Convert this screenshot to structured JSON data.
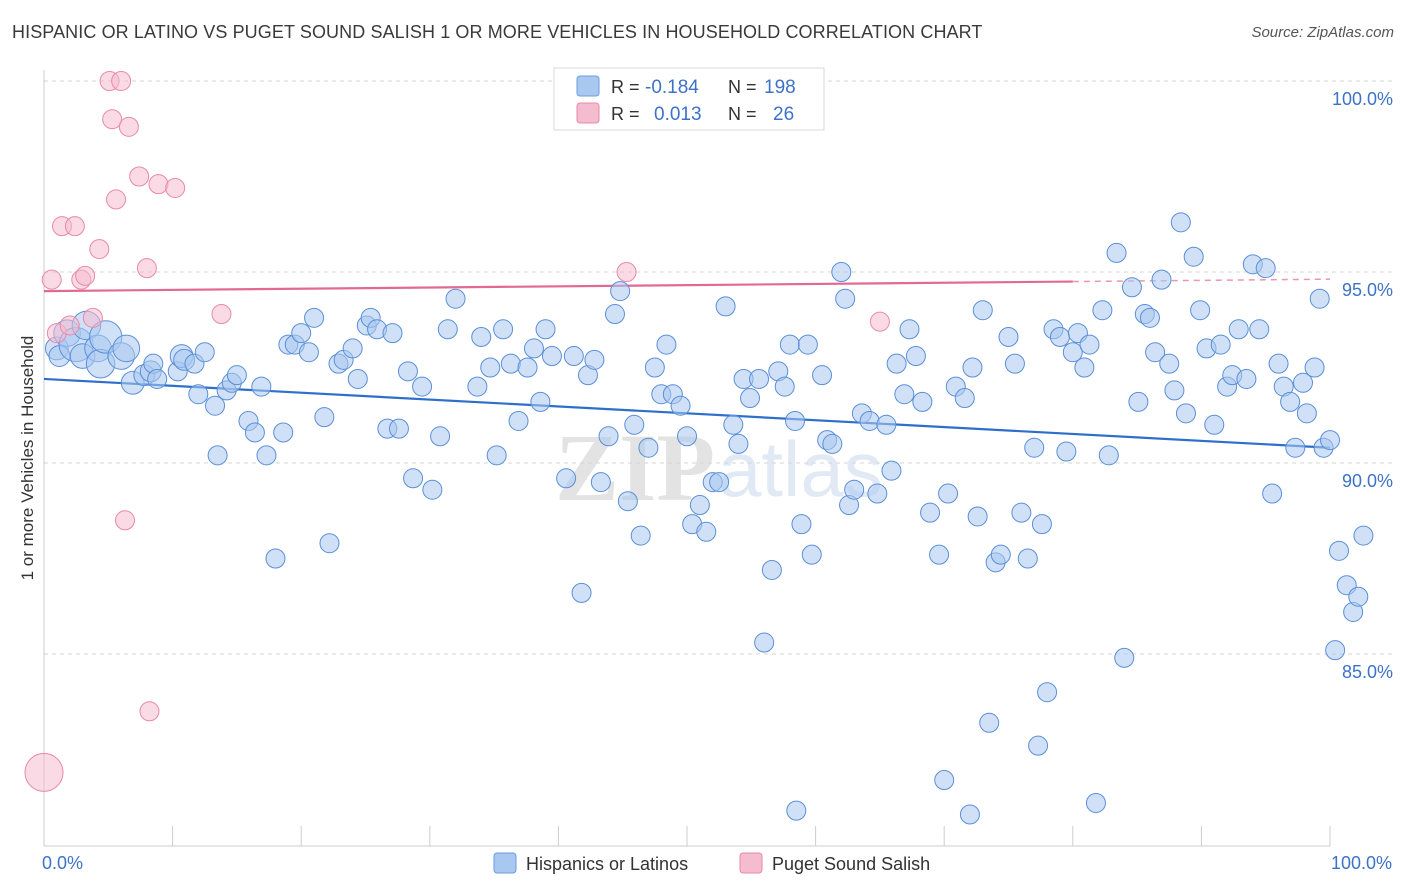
{
  "title": "HISPANIC OR LATINO VS PUGET SOUND SALISH 1 OR MORE VEHICLES IN HOUSEHOLD CORRELATION CHART",
  "source": "Source: ZipAtlas.com",
  "watermark": {
    "zip": "ZIP",
    "atlas": "atlas"
  },
  "stats_box": {
    "rows": [
      {
        "r_label": "R =",
        "r_value": "-0.184",
        "n_label": "N =",
        "n_value": "198",
        "color": "#a9c8f0",
        "border": "#6a9be0"
      },
      {
        "r_label": "R =",
        "r_value": "0.013",
        "n_label": "N =",
        "n_value": "26",
        "color": "#f5bcd0",
        "border": "#e88aa8"
      }
    ]
  },
  "legend": {
    "items": [
      {
        "label": "Hispanics or Latinos",
        "color": "#a9c8f0",
        "border": "#6a9be0"
      },
      {
        "label": "Puget Sound Salish",
        "color": "#f5bcd0",
        "border": "#e88aa8"
      }
    ]
  },
  "chart_data": {
    "type": "scatter",
    "ylabel": "1 or more Vehicles in Household",
    "xlabel": "",
    "xlim": [
      0,
      100
    ],
    "ylim": [
      80.5,
      101.0
    ],
    "x_tick_labels": {
      "min": "0.0%",
      "max": "100.0%"
    },
    "y_ticks": [
      {
        "value": 85,
        "label": "85.0%"
      },
      {
        "value": 90,
        "label": "90.0%"
      },
      {
        "value": 95,
        "label": "95.0%"
      },
      {
        "value": 100,
        "label": "100.0%"
      }
    ],
    "grid": "horizontal-dashed",
    "series": [
      {
        "name": "Hispanics or Latinos",
        "color": "#a9c8f0",
        "stroke": "#5b8fd8",
        "trend": {
          "x": [
            0,
            100
          ],
          "y": [
            92.2,
            90.4
          ],
          "color": "#2f6fcc"
        },
        "points": [
          [
            1.0,
            93.0,
            1.2
          ],
          [
            1.2,
            92.8,
            1.1
          ],
          [
            1.8,
            93.4,
            1.4
          ],
          [
            2.5,
            93.1,
            1.8
          ],
          [
            3.0,
            92.8,
            1.3
          ],
          [
            3.3,
            93.6,
            1.5
          ],
          [
            4.2,
            93.0,
            1.4
          ],
          [
            4.4,
            92.6,
            1.5
          ],
          [
            4.8,
            93.3,
            1.7
          ],
          [
            6.0,
            92.8,
            1.4
          ],
          [
            6.4,
            93.0,
            1.4
          ],
          [
            6.9,
            92.1,
            1.2
          ],
          [
            7.8,
            92.3,
            1.1
          ],
          [
            8.3,
            92.4,
            1.1
          ],
          [
            8.5,
            92.6,
            1.0
          ],
          [
            8.8,
            92.2,
            1.0
          ],
          [
            10.4,
            92.4,
            1.0
          ],
          [
            10.7,
            92.8,
            1.2
          ],
          [
            10.9,
            92.7,
            1.1
          ],
          [
            11.7,
            92.6,
            1.0
          ],
          [
            12.0,
            91.8,
            1.0
          ],
          [
            12.5,
            92.9,
            1.0
          ],
          [
            13.3,
            91.5,
            1.0
          ],
          [
            13.5,
            90.2,
            1.0
          ],
          [
            14.2,
            91.9,
            1.0
          ],
          [
            14.6,
            92.1,
            1.0
          ],
          [
            15.0,
            92.3,
            1.0
          ],
          [
            15.9,
            91.1,
            1.0
          ],
          [
            16.4,
            90.8,
            1.0
          ],
          [
            16.9,
            92.0,
            1.0
          ],
          [
            17.3,
            90.2,
            1.0
          ],
          [
            18.0,
            87.5,
            1.0
          ],
          [
            18.6,
            90.8,
            1.0
          ],
          [
            19.0,
            93.1,
            1.0
          ],
          [
            19.5,
            93.1,
            1.0
          ],
          [
            20.0,
            93.4,
            1.0
          ],
          [
            20.6,
            92.9,
            1.0
          ],
          [
            21.0,
            93.8,
            1.0
          ],
          [
            21.8,
            91.2,
            1.0
          ],
          [
            22.2,
            87.9,
            1.0
          ],
          [
            22.9,
            92.6,
            1.0
          ],
          [
            23.3,
            92.7,
            1.0
          ],
          [
            24.0,
            93.0,
            1.0
          ],
          [
            24.4,
            92.2,
            1.0
          ],
          [
            25.1,
            93.6,
            1.0
          ],
          [
            25.4,
            93.8,
            1.0
          ],
          [
            25.9,
            93.5,
            1.0
          ],
          [
            26.7,
            90.9,
            1.0
          ],
          [
            27.1,
            93.4,
            1.0
          ],
          [
            27.6,
            90.9,
            1.0
          ],
          [
            28.3,
            92.4,
            1.0
          ],
          [
            28.7,
            89.6,
            1.0
          ],
          [
            29.4,
            92.0,
            1.0
          ],
          [
            30.2,
            89.3,
            1.0
          ],
          [
            30.8,
            90.7,
            1.0
          ],
          [
            31.4,
            93.5,
            1.0
          ],
          [
            32.0,
            94.3,
            1.0
          ],
          [
            33.7,
            92.0,
            1.0
          ],
          [
            34.0,
            93.3,
            1.0
          ],
          [
            34.7,
            92.5,
            1.0
          ],
          [
            35.2,
            90.2,
            1.0
          ],
          [
            35.7,
            93.5,
            1.0
          ],
          [
            36.3,
            92.6,
            1.0
          ],
          [
            36.9,
            91.1,
            1.0
          ],
          [
            37.6,
            92.5,
            1.0
          ],
          [
            38.1,
            93.0,
            1.0
          ],
          [
            38.6,
            91.6,
            1.0
          ],
          [
            39.0,
            93.5,
            1.0
          ],
          [
            39.5,
            92.8,
            1.0
          ],
          [
            40.6,
            89.6,
            1.0
          ],
          [
            41.2,
            92.8,
            1.0
          ],
          [
            41.8,
            86.6,
            1.0
          ],
          [
            42.3,
            92.3,
            1.0
          ],
          [
            42.8,
            92.7,
            1.0
          ],
          [
            43.3,
            89.5,
            1.0
          ],
          [
            43.9,
            90.7,
            1.0
          ],
          [
            44.4,
            93.9,
            1.0
          ],
          [
            44.8,
            94.5,
            1.0
          ],
          [
            45.4,
            89.0,
            1.0
          ],
          [
            45.9,
            91.0,
            1.0
          ],
          [
            46.4,
            88.1,
            1.0
          ],
          [
            47.0,
            90.4,
            1.0
          ],
          [
            47.5,
            92.5,
            1.0
          ],
          [
            48.0,
            91.8,
            1.0
          ],
          [
            48.4,
            93.1,
            1.0
          ],
          [
            48.9,
            91.8,
            1.0
          ],
          [
            49.5,
            91.5,
            1.0
          ],
          [
            50.0,
            90.7,
            1.0
          ],
          [
            50.4,
            88.4,
            1.0
          ],
          [
            51.0,
            88.9,
            1.0
          ],
          [
            51.5,
            88.2,
            1.0
          ],
          [
            52.0,
            89.5,
            1.0
          ],
          [
            52.5,
            89.5,
            1.0
          ],
          [
            53.0,
            94.1,
            1.0
          ],
          [
            53.6,
            91.0,
            1.0
          ],
          [
            54.0,
            90.5,
            1.0
          ],
          [
            54.4,
            92.2,
            1.0
          ],
          [
            54.9,
            91.7,
            1.0
          ],
          [
            55.6,
            92.2,
            1.0
          ],
          [
            56.0,
            85.3,
            1.0
          ],
          [
            56.6,
            87.2,
            1.0
          ],
          [
            57.1,
            92.4,
            1.0
          ],
          [
            57.6,
            92.0,
            1.0
          ],
          [
            58.0,
            93.1,
            1.0
          ],
          [
            58.4,
            91.1,
            1.0
          ],
          [
            58.9,
            88.4,
            1.0
          ],
          [
            59.4,
            93.1,
            1.0
          ],
          [
            59.7,
            87.6,
            1.0
          ],
          [
            60.5,
            92.3,
            1.0
          ],
          [
            60.9,
            90.6,
            1.0
          ],
          [
            61.3,
            90.5,
            1.0
          ],
          [
            62.0,
            95.0,
            1.0
          ],
          [
            62.3,
            94.3,
            1.0
          ],
          [
            62.6,
            88.9,
            1.0
          ],
          [
            63.0,
            89.3,
            1.0
          ],
          [
            63.6,
            91.3,
            1.0
          ],
          [
            64.2,
            91.1,
            1.0
          ],
          [
            64.8,
            89.2,
            1.0
          ],
          [
            65.5,
            91.0,
            1.0
          ],
          [
            65.9,
            89.8,
            1.0
          ],
          [
            66.3,
            92.6,
            1.0
          ],
          [
            66.9,
            91.8,
            1.0
          ],
          [
            67.3,
            93.5,
            1.0
          ],
          [
            67.8,
            92.8,
            1.0
          ],
          [
            68.3,
            91.6,
            1.0
          ],
          [
            68.9,
            88.7,
            1.0
          ],
          [
            69.6,
            87.6,
            1.0
          ],
          [
            70.3,
            89.2,
            1.0
          ],
          [
            70.9,
            92.0,
            1.0
          ],
          [
            71.6,
            91.7,
            1.0
          ],
          [
            72.2,
            92.5,
            1.0
          ],
          [
            72.6,
            88.6,
            1.0
          ],
          [
            73.0,
            94.0,
            1.0
          ],
          [
            73.5,
            83.2,
            1.0
          ],
          [
            74.0,
            87.4,
            1.0
          ],
          [
            74.4,
            87.6,
            1.0
          ],
          [
            75.0,
            93.3,
            1.0
          ],
          [
            75.5,
            92.6,
            1.0
          ],
          [
            76.0,
            88.7,
            1.0
          ],
          [
            76.5,
            87.5,
            1.0
          ],
          [
            77.0,
            90.4,
            1.0
          ],
          [
            77.6,
            88.4,
            1.0
          ],
          [
            78.0,
            84.0,
            1.0
          ],
          [
            78.5,
            93.5,
            1.0
          ],
          [
            79.0,
            93.3,
            1.0
          ],
          [
            79.5,
            90.3,
            1.0
          ],
          [
            80.0,
            92.9,
            1.0
          ],
          [
            80.4,
            93.4,
            1.0
          ],
          [
            80.9,
            92.5,
            1.0
          ],
          [
            81.3,
            93.1,
            1.0
          ],
          [
            81.8,
            81.1,
            1.0
          ],
          [
            82.3,
            94.0,
            1.0
          ],
          [
            82.8,
            90.2,
            1.0
          ],
          [
            83.4,
            95.5,
            1.0
          ],
          [
            84.0,
            84.9,
            1.0
          ],
          [
            84.6,
            94.6,
            1.0
          ],
          [
            85.1,
            91.6,
            1.0
          ],
          [
            85.6,
            93.9,
            1.0
          ],
          [
            86.0,
            93.8,
            1.0
          ],
          [
            86.4,
            92.9,
            1.0
          ],
          [
            86.9,
            94.8,
            1.0
          ],
          [
            87.5,
            92.6,
            1.0
          ],
          [
            87.9,
            91.9,
            1.0
          ],
          [
            88.4,
            96.3,
            1.0
          ],
          [
            88.8,
            91.3,
            1.0
          ],
          [
            89.4,
            95.4,
            1.0
          ],
          [
            89.9,
            94.0,
            1.0
          ],
          [
            90.4,
            93.0,
            1.0
          ],
          [
            91.0,
            91.0,
            1.0
          ],
          [
            91.5,
            93.1,
            1.0
          ],
          [
            92.0,
            92.0,
            1.0
          ],
          [
            92.4,
            92.3,
            1.0
          ],
          [
            92.9,
            93.5,
            1.0
          ],
          [
            93.5,
            92.2,
            1.0
          ],
          [
            94.0,
            95.2,
            1.0
          ],
          [
            94.5,
            93.5,
            1.0
          ],
          [
            95.0,
            95.1,
            1.0
          ],
          [
            95.5,
            89.2,
            1.0
          ],
          [
            96.0,
            92.6,
            1.0
          ],
          [
            96.4,
            92.0,
            1.0
          ],
          [
            96.9,
            91.6,
            1.0
          ],
          [
            97.3,
            90.4,
            1.0
          ],
          [
            97.9,
            92.1,
            1.0
          ],
          [
            98.2,
            91.3,
            1.0
          ],
          [
            98.8,
            92.5,
            1.0
          ],
          [
            99.2,
            94.3,
            1.0
          ],
          [
            99.5,
            90.4,
            1.0
          ],
          [
            100.0,
            90.6,
            1.0
          ],
          [
            100.4,
            85.1,
            1.0
          ],
          [
            100.7,
            87.7,
            1.0
          ],
          [
            101.3,
            86.8,
            1.0
          ],
          [
            101.8,
            86.1,
            1.0
          ],
          [
            102.2,
            86.5,
            1.0
          ],
          [
            102.6,
            88.1,
            1.0
          ],
          [
            58.5,
            80.9,
            1.0
          ],
          [
            70.0,
            81.7,
            1.0
          ],
          [
            72.0,
            80.8,
            1.0
          ],
          [
            77.3,
            82.6,
            1.0
          ]
        ]
      },
      {
        "name": "Puget Sound Salish",
        "color": "#f5bcd0",
        "stroke": "#e88aa8",
        "trend": {
          "x": [
            0,
            80
          ],
          "y": [
            94.5,
            94.75
          ],
          "color": "#e26a92",
          "dashed_extension_to": 100
        },
        "points": [
          [
            0.0,
            81.9,
            2.0
          ],
          [
            0.6,
            94.8,
            1.0
          ],
          [
            1.0,
            93.4,
            1.0
          ],
          [
            1.4,
            96.2,
            1.0
          ],
          [
            2.0,
            93.6,
            1.0
          ],
          [
            2.4,
            96.2,
            1.0
          ],
          [
            2.9,
            94.8,
            1.0
          ],
          [
            3.2,
            94.9,
            1.0
          ],
          [
            3.8,
            93.8,
            1.0
          ],
          [
            4.3,
            95.6,
            1.0
          ],
          [
            5.1,
            100.0,
            1.0
          ],
          [
            5.3,
            99.0,
            1.0
          ],
          [
            5.6,
            96.9,
            1.0
          ],
          [
            6.0,
            100.0,
            1.0
          ],
          [
            6.3,
            88.5,
            1.0
          ],
          [
            6.6,
            98.8,
            1.0
          ],
          [
            7.4,
            97.5,
            1.0
          ],
          [
            8.0,
            95.1,
            1.0
          ],
          [
            8.2,
            83.5,
            1.0
          ],
          [
            8.9,
            97.3,
            1.0
          ],
          [
            10.2,
            97.2,
            1.0
          ],
          [
            13.8,
            93.9,
            1.0
          ],
          [
            45.3,
            95.0,
            1.0
          ],
          [
            65.0,
            93.7,
            1.0
          ]
        ]
      }
    ]
  }
}
